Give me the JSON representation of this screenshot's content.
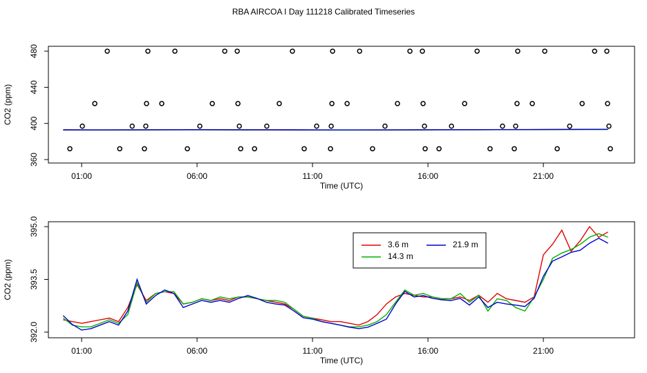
{
  "chart_data": [
    {
      "type": "line",
      "title": "RBA AIRCOA I  Day 111218  Calibrated Timeseries",
      "xlabel": "Time (UTC)",
      "ylabel": "CO2 (ppm)",
      "xlim": [
        -0.44,
        24.95
      ],
      "ylim": [
        356.2,
        485.4
      ],
      "xticks": [
        {
          "value": 1,
          "label": "01:00"
        },
        {
          "value": 6,
          "label": "06:00"
        },
        {
          "value": 11,
          "label": "11:00"
        },
        {
          "value": 16,
          "label": "16:00"
        },
        {
          "value": 21,
          "label": "21:00"
        }
      ],
      "yticks": [
        360,
        400,
        440,
        480
      ],
      "x": [
        0.2,
        2,
        4,
        6,
        8,
        10,
        12,
        14,
        16,
        18,
        20,
        22,
        23.8
      ],
      "series": [
        {
          "color": "#e00000",
          "values": [
            392.9,
            392.8,
            393.0,
            393.0,
            392.9,
            392.9,
            392.7,
            392.8,
            393.0,
            393.0,
            393.1,
            393.3,
            393.4
          ]
        },
        {
          "color": "#00b000",
          "values": [
            392.8,
            392.7,
            392.9,
            393.0,
            392.9,
            392.8,
            392.7,
            392.7,
            392.9,
            393.0,
            393.1,
            393.2,
            393.3
          ]
        },
        {
          "color": "#0000d0",
          "values": [
            392.9,
            392.8,
            393.0,
            393.1,
            393.0,
            392.9,
            392.8,
            392.8,
            393.0,
            393.1,
            393.2,
            393.4,
            393.5
          ]
        },
        {
          "type": "scatter",
          "marker": "circle",
          "color": "#000000",
          "x": [
            2.11,
            3.87,
            5.04,
            7.2,
            7.74,
            10.13,
            11.87,
            13.04,
            15.22,
            15.76,
            18.13,
            19.89,
            21.06,
            23.22,
            23.75,
            1.57,
            3.81,
            4.47,
            6.66,
            7.77,
            9.56,
            11.84,
            12.5,
            14.68,
            15.79,
            17.59,
            19.86,
            20.52,
            22.68,
            23.78,
            1.03,
            3.19,
            3.78,
            6.12,
            7.83,
            9.02,
            11.18,
            11.81,
            14.14,
            15.85,
            17.02,
            19.23,
            19.8,
            22.14,
            23.84,
            0.49,
            2.65,
            3.72,
            5.58,
            7.89,
            8.49,
            10.64,
            11.78,
            13.6,
            15.88,
            16.48,
            18.69,
            19.74,
            21.6,
            23.9
          ],
          "values": [
            480,
            480,
            480,
            480,
            480,
            480,
            480,
            480,
            480,
            480,
            480,
            480,
            480,
            480,
            480,
            422,
            422,
            422,
            422,
            422,
            422,
            422,
            422,
            422,
            422,
            422,
            422,
            422,
            422,
            422,
            397,
            397,
            397,
            397,
            397,
            397,
            397,
            397,
            397,
            397,
            397,
            397,
            397,
            397,
            397,
            372,
            372,
            372,
            372,
            372,
            372,
            372,
            372,
            372,
            372,
            372,
            372,
            372,
            372,
            372
          ]
        }
      ]
    },
    {
      "type": "line",
      "xlabel": "Time (UTC)",
      "ylabel": "CO2 (ppm)",
      "xlim": [
        -0.44,
        24.95
      ],
      "ylim": [
        391.84,
        395.14
      ],
      "xticks": [
        {
          "value": 1,
          "label": "01:00"
        },
        {
          "value": 6,
          "label": "06:00"
        },
        {
          "value": 11,
          "label": "11:00"
        },
        {
          "value": 16,
          "label": "16:00"
        },
        {
          "value": 21,
          "label": "21:00"
        }
      ],
      "yticks": [
        {
          "value": 392,
          "label": "392.0"
        },
        {
          "value": 393.5,
          "label": "393.5"
        },
        {
          "value": 395,
          "label": "395.0"
        }
      ],
      "legend": "top",
      "x": [
        0.2,
        0.6,
        1.0,
        1.4,
        1.8,
        2.2,
        2.6,
        3.0,
        3.4,
        3.8,
        4.2,
        4.6,
        5.0,
        5.4,
        5.8,
        6.2,
        6.6,
        7.0,
        7.4,
        7.8,
        8.2,
        8.6,
        9.0,
        9.4,
        9.8,
        10.2,
        10.6,
        11.0,
        11.4,
        11.8,
        12.2,
        12.6,
        13.0,
        13.4,
        13.8,
        14.2,
        14.6,
        15.0,
        15.4,
        15.8,
        16.2,
        16.6,
        17.0,
        17.4,
        17.8,
        18.2,
        18.6,
        19.0,
        19.4,
        19.8,
        20.2,
        20.6,
        21.0,
        21.4,
        21.8,
        22.2,
        22.6,
        23.0,
        23.4,
        23.8
      ],
      "series": [
        {
          "name": "3.6 m",
          "color": "#e00000",
          "values": [
            392.35,
            392.3,
            392.25,
            392.3,
            392.35,
            392.4,
            392.3,
            392.7,
            393.35,
            392.9,
            393.1,
            393.15,
            393.1,
            392.8,
            392.85,
            392.95,
            392.9,
            392.95,
            392.9,
            393.0,
            393.0,
            392.95,
            392.9,
            392.85,
            392.8,
            392.65,
            392.45,
            392.4,
            392.35,
            392.3,
            392.3,
            392.25,
            392.2,
            392.3,
            392.5,
            392.8,
            393.0,
            393.1,
            393.05,
            393.0,
            393.0,
            392.95,
            392.95,
            393.0,
            392.9,
            393.05,
            392.85,
            393.1,
            392.95,
            392.9,
            392.85,
            393.0,
            394.2,
            394.5,
            394.9,
            394.3,
            394.6,
            395.0,
            394.7,
            394.85
          ]
        },
        {
          "name": "14.3 m",
          "color": "#00b000",
          "values": [
            392.4,
            392.2,
            392.15,
            392.15,
            392.25,
            392.35,
            392.25,
            392.5,
            393.4,
            392.85,
            393.1,
            393.15,
            393.15,
            392.8,
            392.85,
            392.95,
            392.9,
            393.0,
            392.95,
            393.0,
            393.0,
            392.95,
            392.9,
            392.9,
            392.85,
            392.65,
            392.45,
            392.4,
            392.3,
            392.25,
            392.2,
            392.15,
            392.15,
            392.2,
            392.3,
            392.5,
            392.85,
            393.2,
            393.05,
            393.1,
            393.0,
            392.95,
            392.95,
            393.1,
            392.85,
            393.05,
            392.6,
            392.95,
            392.9,
            392.7,
            392.6,
            393.0,
            393.5,
            394.1,
            394.25,
            394.35,
            394.5,
            394.7,
            394.8,
            394.7
          ]
        },
        {
          "name": "21.9 m",
          "color": "#0000d0",
          "values": [
            392.47,
            392.22,
            392.06,
            392.1,
            392.2,
            392.3,
            392.2,
            392.6,
            393.5,
            392.8,
            393.04,
            393.2,
            393.1,
            392.7,
            392.8,
            392.9,
            392.85,
            392.9,
            392.85,
            392.96,
            393.04,
            392.96,
            392.85,
            392.8,
            392.77,
            392.6,
            392.41,
            392.37,
            392.3,
            392.25,
            392.2,
            392.14,
            392.1,
            392.14,
            392.25,
            392.37,
            392.8,
            393.16,
            393.0,
            393.04,
            392.96,
            392.92,
            392.9,
            392.96,
            392.77,
            393.0,
            392.7,
            392.85,
            392.8,
            392.77,
            392.73,
            392.96,
            393.59,
            394.02,
            394.14,
            394.27,
            394.33,
            394.53,
            394.67,
            394.53
          ]
        }
      ]
    }
  ]
}
